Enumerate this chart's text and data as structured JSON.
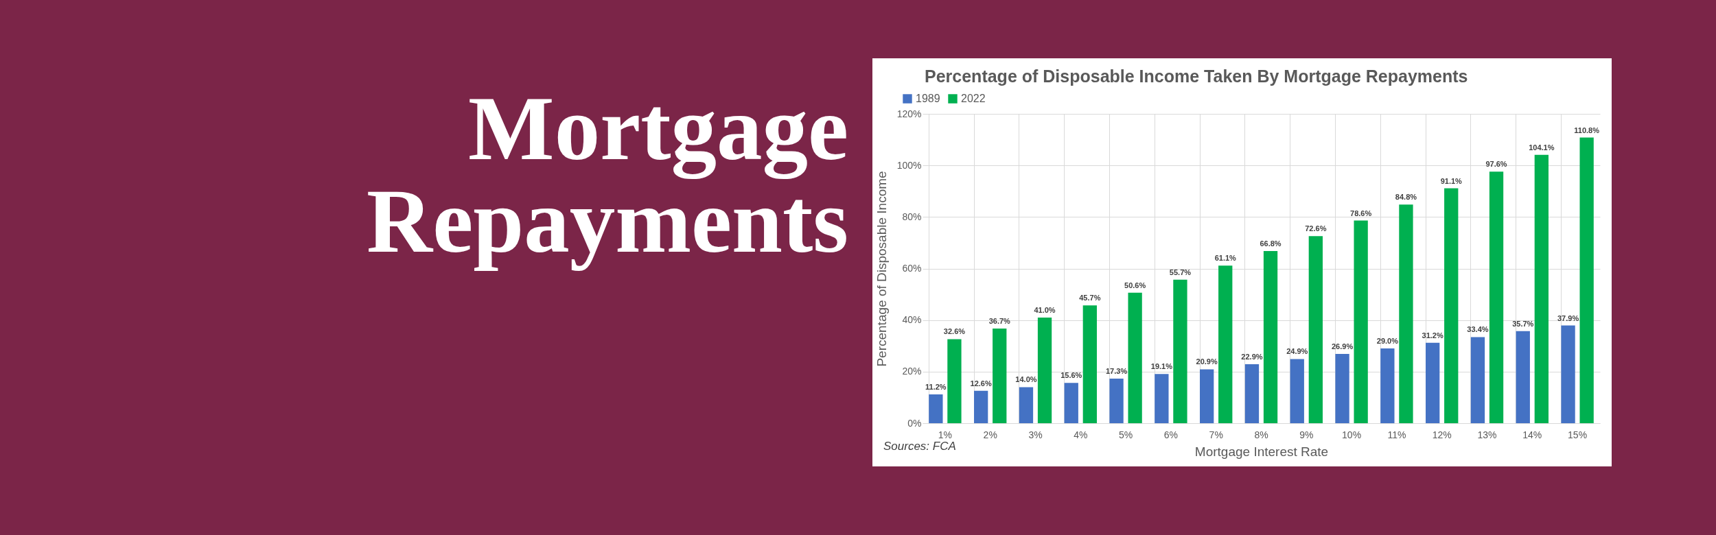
{
  "chart_data": {
    "type": "bar",
    "title": "Mortgage Repayments",
    "subtitle": "Percentage of Disposable Income Taken By Mortgage Repayments",
    "xlabel": "Mortgage Interest Rate",
    "ylabel": "Percentage of Disposable Income",
    "categories": [
      "1%",
      "2%",
      "3%",
      "4%",
      "5%",
      "6%",
      "7%",
      "8%",
      "9%",
      "10%",
      "11%",
      "12%",
      "13%",
      "14%",
      "15%"
    ],
    "series": [
      {
        "name": "1989",
        "color": "#4472c4",
        "values": [
          11.2,
          12.6,
          14.0,
          15.6,
          17.3,
          19.1,
          20.9,
          22.9,
          24.9,
          26.9,
          29.0,
          31.2,
          33.4,
          35.7,
          37.9
        ],
        "value_labels": [
          "11.2%",
          "12.6%",
          "14.0%",
          "15.6%",
          "17.3%",
          "19.1%",
          "20.9%",
          "22.9%",
          "24.9%",
          "26.9%",
          "29.0%",
          "31.2%",
          "33.4%",
          "35.7%",
          "37.9%"
        ]
      },
      {
        "name": "2022",
        "color": "#00b050",
        "values": [
          32.6,
          36.7,
          41.0,
          45.7,
          50.6,
          55.7,
          61.1,
          66.8,
          72.6,
          78.6,
          84.8,
          91.1,
          97.6,
          104.1,
          110.8
        ],
        "value_labels": [
          "32.6%",
          "36.7%",
          "41.0%",
          "45.7%",
          "50.6%",
          "55.7%",
          "61.1%",
          "66.8%",
          "72.6%",
          "78.6%",
          "84.8%",
          "91.1%",
          "97.6%",
          "104.1%",
          "110.8%"
        ]
      }
    ],
    "ylim": [
      0,
      120
    ],
    "yticks": [
      {
        "value": 0,
        "label": "0%"
      },
      {
        "value": 20,
        "label": "20%"
      },
      {
        "value": 40,
        "label": "40%"
      },
      {
        "value": 60,
        "label": "60%"
      },
      {
        "value": 80,
        "label": "80%"
      },
      {
        "value": 100,
        "label": "100%"
      },
      {
        "value": 120,
        "label": "120%"
      }
    ],
    "grid": true,
    "legend": "top left",
    "annotations": [
      "Sources: FCA"
    ]
  }
}
